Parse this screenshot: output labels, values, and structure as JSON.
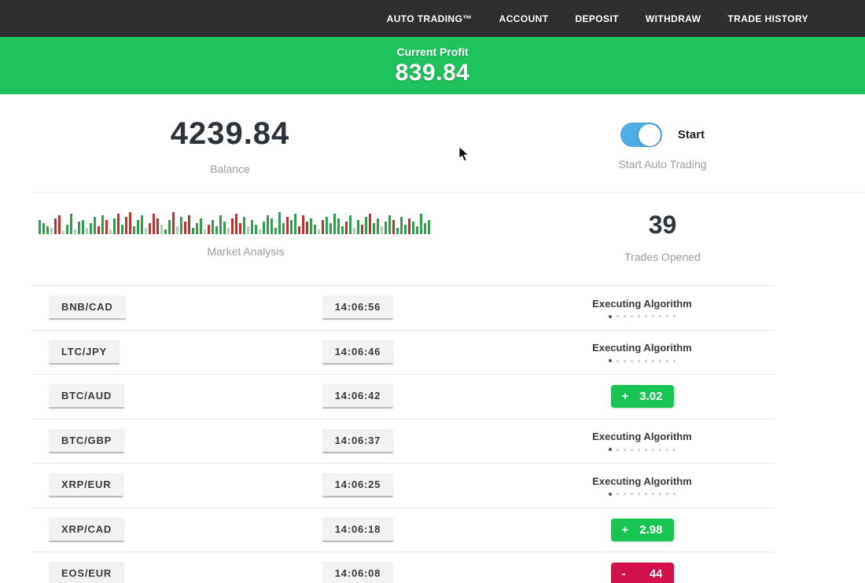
{
  "nav": {
    "items": [
      {
        "id": "auto-trading",
        "label": "AUTO TRADING™"
      },
      {
        "id": "account",
        "label": "ACCOUNT"
      },
      {
        "id": "deposit",
        "label": "DEPOSIT"
      },
      {
        "id": "withdraw",
        "label": "WITHDRAW"
      },
      {
        "id": "trade-history",
        "label": "TRADE HISTORY"
      }
    ]
  },
  "profit_banner": {
    "label": "Current Profit",
    "value": "839.84"
  },
  "stats": {
    "balance": {
      "value": "4239.84",
      "label": "Balance"
    },
    "auto_trading": {
      "toggle_on": true,
      "toggle_label": "Start",
      "caption": "Start Auto Trading"
    },
    "market_analysis": {
      "label": "Market Analysis"
    },
    "trades_opened": {
      "value": "39",
      "label": "Trades Opened"
    }
  },
  "trades": [
    {
      "pair": "BNB/CAD",
      "time": "14:06:56",
      "status": "executing",
      "status_label": "Executing Algorithm"
    },
    {
      "pair": "LTC/JPY",
      "time": "14:06:46",
      "status": "executing",
      "status_label": "Executing Algorithm"
    },
    {
      "pair": "BTC/AUD",
      "time": "14:06:42",
      "status": "profit",
      "sign": "+",
      "result": "3.02"
    },
    {
      "pair": "BTC/GBP",
      "time": "14:06:37",
      "status": "executing",
      "status_label": "Executing Algorithm"
    },
    {
      "pair": "XRP/EUR",
      "time": "14:06:25",
      "status": "executing",
      "status_label": "Executing Algorithm"
    },
    {
      "pair": "XRP/CAD",
      "time": "14:06:18",
      "status": "profit",
      "sign": "+",
      "result": "2.98"
    },
    {
      "pair": "EOS/EUR",
      "time": "14:06:08",
      "status": "loss",
      "sign": "-",
      "result": "44"
    }
  ],
  "progress": {
    "dots_total": 10,
    "dots_active": 1
  },
  "colors": {
    "banner_green": "#1fc35e",
    "badge_green": "#18c452",
    "badge_red": "#d1104c",
    "toggle_blue": "#4fade3",
    "nav_dark": "#2e2e2e"
  },
  "chart_data": {
    "type": "bar",
    "title": "Market Analysis",
    "xlabel": "",
    "ylabel": "",
    "note": "decorative market-pulse strip, no axes or tick labels; bars = [height_px, color_key]",
    "palette": {
      "g": "#339e4d",
      "r": "#c5302c",
      "lg": "#a8d5b0"
    },
    "bars": [
      [
        18,
        "g"
      ],
      [
        14,
        "g"
      ],
      [
        10,
        "g"
      ],
      [
        8,
        "lg"
      ],
      [
        20,
        "r"
      ],
      [
        24,
        "r"
      ],
      [
        4,
        "lg"
      ],
      [
        12,
        "g"
      ],
      [
        26,
        "g"
      ],
      [
        6,
        "lg"
      ],
      [
        16,
        "g"
      ],
      [
        18,
        "g"
      ],
      [
        8,
        "lg"
      ],
      [
        14,
        "g"
      ],
      [
        22,
        "g"
      ],
      [
        10,
        "r"
      ],
      [
        24,
        "g"
      ],
      [
        18,
        "r"
      ],
      [
        6,
        "lg"
      ],
      [
        20,
        "g"
      ],
      [
        26,
        "r"
      ],
      [
        12,
        "g"
      ],
      [
        22,
        "r"
      ],
      [
        28,
        "r"
      ],
      [
        10,
        "g"
      ],
      [
        18,
        "g"
      ],
      [
        24,
        "g"
      ],
      [
        8,
        "lg"
      ],
      [
        14,
        "r"
      ],
      [
        26,
        "r"
      ],
      [
        20,
        "r"
      ],
      [
        12,
        "lg"
      ],
      [
        6,
        "g"
      ],
      [
        18,
        "g"
      ],
      [
        28,
        "r"
      ],
      [
        10,
        "lg"
      ],
      [
        22,
        "g"
      ],
      [
        16,
        "r"
      ],
      [
        24,
        "r"
      ],
      [
        8,
        "g"
      ],
      [
        14,
        "g"
      ],
      [
        20,
        "g"
      ],
      [
        6,
        "lg"
      ],
      [
        12,
        "r"
      ],
      [
        18,
        "g"
      ],
      [
        10,
        "g"
      ],
      [
        24,
        "g"
      ],
      [
        16,
        "g"
      ],
      [
        8,
        "lg"
      ],
      [
        20,
        "r"
      ],
      [
        26,
        "r"
      ],
      [
        14,
        "r"
      ],
      [
        22,
        "g"
      ],
      [
        10,
        "lg"
      ],
      [
        18,
        "g"
      ],
      [
        12,
        "g"
      ],
      [
        6,
        "lg"
      ],
      [
        16,
        "g"
      ],
      [
        24,
        "g"
      ],
      [
        20,
        "g"
      ],
      [
        8,
        "g"
      ],
      [
        28,
        "g"
      ],
      [
        14,
        "g"
      ],
      [
        22,
        "r"
      ],
      [
        18,
        "g"
      ],
      [
        26,
        "g"
      ],
      [
        10,
        "r"
      ],
      [
        24,
        "r"
      ],
      [
        16,
        "r"
      ],
      [
        20,
        "g"
      ],
      [
        12,
        "g"
      ],
      [
        6,
        "lg"
      ],
      [
        18,
        "r"
      ],
      [
        22,
        "g"
      ],
      [
        14,
        "g"
      ],
      [
        26,
        "g"
      ],
      [
        20,
        "g"
      ],
      [
        10,
        "g"
      ],
      [
        16,
        "r"
      ],
      [
        24,
        "g"
      ],
      [
        8,
        "lg"
      ],
      [
        18,
        "g"
      ],
      [
        12,
        "r"
      ],
      [
        22,
        "g"
      ],
      [
        26,
        "r"
      ],
      [
        14,
        "g"
      ],
      [
        20,
        "g"
      ],
      [
        10,
        "lg"
      ],
      [
        16,
        "g"
      ],
      [
        24,
        "g"
      ],
      [
        18,
        "r"
      ],
      [
        8,
        "g"
      ],
      [
        22,
        "g"
      ],
      [
        12,
        "g"
      ],
      [
        20,
        "r"
      ],
      [
        16,
        "g"
      ],
      [
        10,
        "g"
      ],
      [
        26,
        "g"
      ],
      [
        14,
        "g"
      ],
      [
        18,
        "g"
      ]
    ]
  }
}
